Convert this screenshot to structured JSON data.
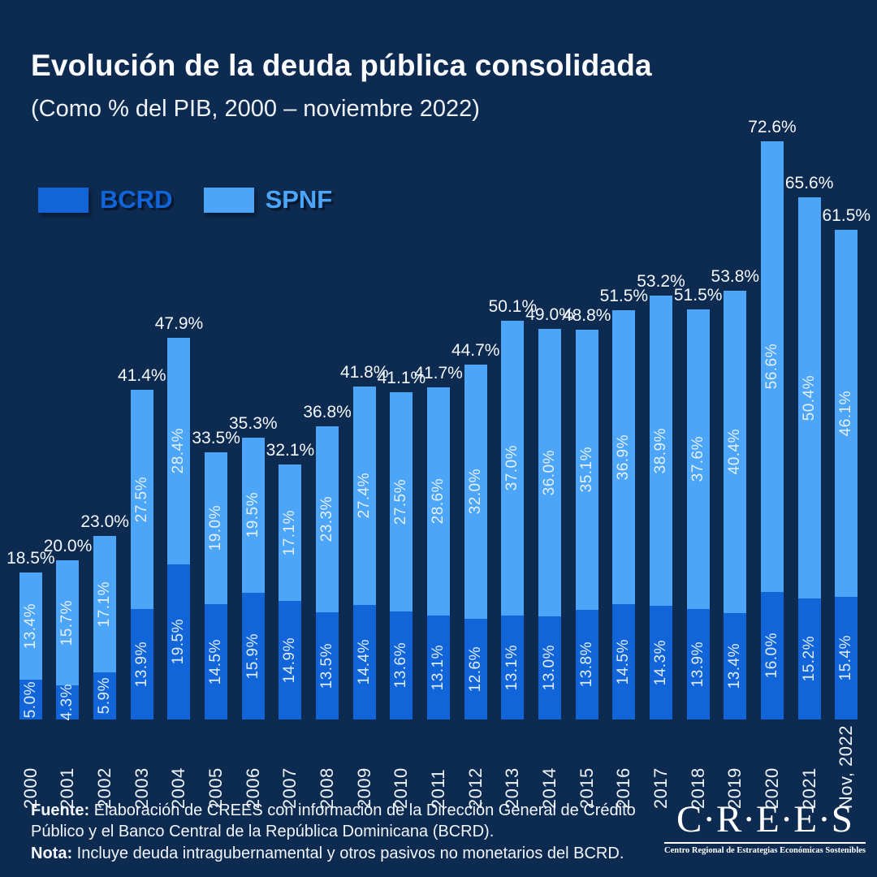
{
  "header": {
    "title": "Evolución de la deuda pública consolidada",
    "subtitle": "(Como % del PIB, 2000 – noviembre 2022)"
  },
  "chart_data": {
    "type": "bar",
    "stacked": true,
    "title": "Evolución de la deuda pública consolidada",
    "subtitle": "(Como % del PIB, 2000 – noviembre 2022)",
    "xlabel": "",
    "ylabel": "",
    "ylim": [
      0,
      75
    ],
    "grid": false,
    "legend_position": "top-left",
    "value_suffix": "%",
    "categories": [
      "2000",
      "2001",
      "2002",
      "2003",
      "2004",
      "2005",
      "2006",
      "2007",
      "2008",
      "2009",
      "2010",
      "2011",
      "2012",
      "2013",
      "2014",
      "2015",
      "2016",
      "2017",
      "2018",
      "2019",
      "2020",
      "2021",
      "Nov, 2022"
    ],
    "series": [
      {
        "name": "BCRD",
        "color": "#1265d8",
        "values": [
          5.0,
          4.3,
          5.9,
          13.9,
          19.5,
          14.5,
          15.9,
          14.9,
          13.5,
          14.4,
          13.6,
          13.1,
          12.6,
          13.1,
          13.0,
          13.8,
          14.5,
          14.3,
          13.9,
          13.4,
          16.0,
          15.2,
          15.4
        ]
      },
      {
        "name": "SPNF",
        "color": "#4da5f7",
        "values": [
          13.4,
          15.7,
          17.1,
          27.5,
          28.4,
          19.0,
          19.5,
          17.1,
          23.3,
          27.4,
          27.5,
          28.6,
          32.0,
          37.0,
          36.0,
          35.1,
          36.9,
          38.9,
          37.6,
          40.4,
          56.6,
          50.4,
          46.1
        ]
      }
    ],
    "totals": [
      18.5,
      20.0,
      23.0,
      41.4,
      47.9,
      33.5,
      35.3,
      32.1,
      36.8,
      41.8,
      41.1,
      41.7,
      44.7,
      50.1,
      49.0,
      48.8,
      51.5,
      53.2,
      51.5,
      53.8,
      72.6,
      65.6,
      61.5
    ]
  },
  "colors": {
    "background": "#0d2b50",
    "bcrd": "#1265d8",
    "spnf": "#4da5f7",
    "text": "#ffffff"
  },
  "footer": {
    "source_label": "Fuente:",
    "source_text": "Elaboración de CREES con información de la Dirección General de Crédito Público y el Banco Central de la República Dominicana (BCRD).",
    "note_label": "Nota:",
    "note_text": "Incluye deuda intragubernamental y otros pasivos no monetarios del BCRD.",
    "logo": {
      "name": "C·R·E·E·S",
      "tagline": "Centro Regional de Estrategias Económicas Sostenibles"
    }
  }
}
